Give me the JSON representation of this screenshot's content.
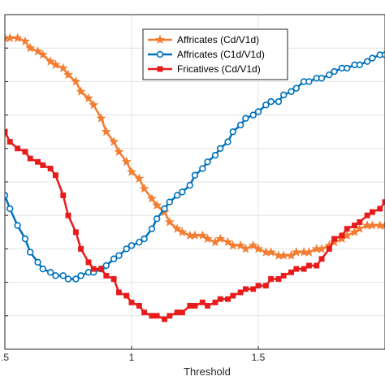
{
  "chart_data": {
    "type": "line",
    "xlabel": "Threshold",
    "ylabel": "",
    "xlim": [
      0.5,
      2.0
    ],
    "ylim": [
      0,
      1
    ],
    "xticks": [
      {
        "value": 0.5,
        "label": ".5"
      },
      {
        "value": 1.0,
        "label": "1"
      },
      {
        "value": 1.5,
        "label": "1.5"
      }
    ],
    "yticks": [
      0.1,
      0.2,
      0.3,
      0.4,
      0.5,
      0.6,
      0.7,
      0.8,
      0.9
    ],
    "grid": true,
    "legend_position": "top-center",
    "series": [
      {
        "name": "Affricates (Cd/V1d)",
        "color": "#f47c30",
        "marker": "star",
        "x": [
          0.5,
          0.52,
          0.55,
          0.58,
          0.6,
          0.63,
          0.65,
          0.68,
          0.7,
          0.73,
          0.75,
          0.78,
          0.8,
          0.83,
          0.85,
          0.88,
          0.9,
          0.93,
          0.95,
          0.98,
          1.0,
          1.03,
          1.05,
          1.08,
          1.1,
          1.13,
          1.15,
          1.18,
          1.2,
          1.23,
          1.25,
          1.28,
          1.3,
          1.33,
          1.35,
          1.38,
          1.4,
          1.43,
          1.45,
          1.48,
          1.5,
          1.53,
          1.55,
          1.58,
          1.6,
          1.63,
          1.65,
          1.68,
          1.7,
          1.73,
          1.75,
          1.78,
          1.8,
          1.83,
          1.85,
          1.88,
          1.9,
          1.93,
          1.95,
          1.98,
          2.0
        ],
        "y": [
          0.93,
          0.93,
          0.93,
          0.92,
          0.9,
          0.89,
          0.88,
          0.86,
          0.85,
          0.84,
          0.82,
          0.8,
          0.77,
          0.75,
          0.73,
          0.69,
          0.65,
          0.62,
          0.59,
          0.56,
          0.53,
          0.51,
          0.48,
          0.45,
          0.43,
          0.41,
          0.38,
          0.36,
          0.35,
          0.34,
          0.34,
          0.34,
          0.33,
          0.32,
          0.33,
          0.32,
          0.31,
          0.31,
          0.3,
          0.31,
          0.3,
          0.29,
          0.29,
          0.28,
          0.28,
          0.28,
          0.29,
          0.29,
          0.29,
          0.3,
          0.3,
          0.31,
          0.32,
          0.33,
          0.34,
          0.35,
          0.36,
          0.37,
          0.37,
          0.37,
          0.37
        ]
      },
      {
        "name": "Affricates (C1d/V1d)",
        "color": "#0072bd",
        "marker": "circle",
        "x": [
          0.5,
          0.52,
          0.55,
          0.58,
          0.6,
          0.63,
          0.65,
          0.68,
          0.7,
          0.73,
          0.75,
          0.78,
          0.8,
          0.83,
          0.85,
          0.88,
          0.9,
          0.93,
          0.95,
          0.98,
          1.0,
          1.03,
          1.05,
          1.08,
          1.1,
          1.13,
          1.15,
          1.18,
          1.2,
          1.23,
          1.25,
          1.28,
          1.3,
          1.33,
          1.35,
          1.38,
          1.4,
          1.43,
          1.45,
          1.48,
          1.5,
          1.53,
          1.55,
          1.58,
          1.6,
          1.63,
          1.65,
          1.68,
          1.7,
          1.73,
          1.75,
          1.78,
          1.8,
          1.83,
          1.85,
          1.88,
          1.9,
          1.93,
          1.95,
          1.98,
          2.0
        ],
        "y": [
          0.46,
          0.42,
          0.37,
          0.33,
          0.29,
          0.26,
          0.24,
          0.23,
          0.22,
          0.22,
          0.21,
          0.21,
          0.22,
          0.23,
          0.23,
          0.24,
          0.25,
          0.27,
          0.28,
          0.3,
          0.31,
          0.32,
          0.33,
          0.36,
          0.39,
          0.42,
          0.44,
          0.46,
          0.47,
          0.49,
          0.52,
          0.54,
          0.56,
          0.58,
          0.6,
          0.62,
          0.65,
          0.67,
          0.69,
          0.7,
          0.71,
          0.73,
          0.74,
          0.74,
          0.76,
          0.77,
          0.78,
          0.8,
          0.8,
          0.81,
          0.81,
          0.82,
          0.83,
          0.84,
          0.84,
          0.85,
          0.85,
          0.86,
          0.87,
          0.88,
          0.88
        ]
      },
      {
        "name": "Fricatives (Cd/V1d)",
        "color": "#e81b1b",
        "marker": "square",
        "x": [
          0.5,
          0.52,
          0.55,
          0.58,
          0.6,
          0.63,
          0.65,
          0.68,
          0.7,
          0.73,
          0.75,
          0.78,
          0.8,
          0.83,
          0.85,
          0.88,
          0.9,
          0.93,
          0.95,
          0.98,
          1.0,
          1.03,
          1.05,
          1.08,
          1.1,
          1.13,
          1.15,
          1.18,
          1.2,
          1.23,
          1.25,
          1.28,
          1.3,
          1.33,
          1.35,
          1.38,
          1.4,
          1.43,
          1.45,
          1.48,
          1.5,
          1.53,
          1.55,
          1.58,
          1.6,
          1.63,
          1.65,
          1.68,
          1.7,
          1.73,
          1.75,
          1.78,
          1.8,
          1.83,
          1.85,
          1.88,
          1.9,
          1.93,
          1.95,
          1.98,
          2.0
        ],
        "y": [
          0.65,
          0.62,
          0.6,
          0.59,
          0.57,
          0.56,
          0.55,
          0.54,
          0.52,
          0.46,
          0.4,
          0.35,
          0.3,
          0.26,
          0.24,
          0.24,
          0.22,
          0.21,
          0.17,
          0.16,
          0.14,
          0.13,
          0.11,
          0.1,
          0.1,
          0.09,
          0.1,
          0.11,
          0.11,
          0.13,
          0.13,
          0.14,
          0.13,
          0.14,
          0.15,
          0.15,
          0.16,
          0.17,
          0.18,
          0.18,
          0.19,
          0.19,
          0.21,
          0.21,
          0.22,
          0.23,
          0.24,
          0.24,
          0.25,
          0.25,
          0.27,
          0.3,
          0.33,
          0.34,
          0.36,
          0.37,
          0.38,
          0.4,
          0.41,
          0.42,
          0.44
        ]
      }
    ]
  }
}
